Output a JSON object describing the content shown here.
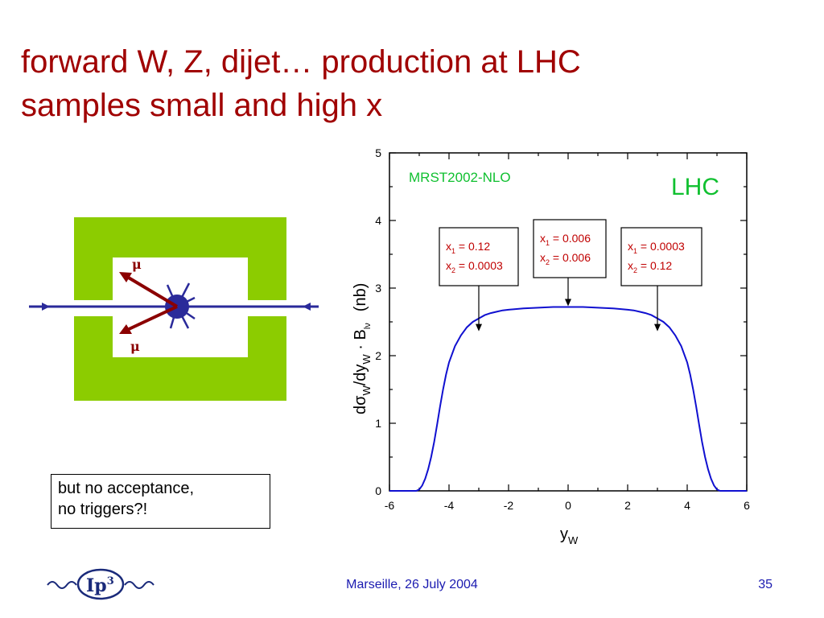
{
  "slide": {
    "title_line1": "forward W, Z, dijet… production at LHC",
    "title_line2": "samples small and high x",
    "note_line1": "but no acceptance,",
    "note_line2": "no triggers?!",
    "footer": "Marseille, 26 July 2004",
    "page_number": "35",
    "logo_letters": "Ip",
    "logo_superscript": "3"
  },
  "detector": {
    "muon_label_top": "μ",
    "muon_label_bottom": "μ",
    "colors": {
      "detector": "#8ccc00",
      "beam": "#2a2a9a",
      "muon": "#8b0000"
    }
  },
  "chart_data": {
    "type": "line",
    "title": "LHC",
    "subtitle": "MRST2002-NLO",
    "xlabel_main": "y",
    "xlabel_sub": "W",
    "ylabel_main": "dσ",
    "ylabel_sub1": "W",
    "ylabel_mid": "/dy",
    "ylabel_sub2": "W",
    "ylabel_dot": " · B",
    "ylabel_sub3": "lν",
    "ylabel_unit": "(nb)",
    "xlim": [
      -6,
      6
    ],
    "ylim": [
      0,
      5
    ],
    "xticks": [
      -6,
      -4,
      -2,
      0,
      2,
      4,
      6
    ],
    "yticks": [
      0,
      1,
      2,
      3,
      4,
      5
    ],
    "color": "#1010d0",
    "series": [
      {
        "x": [
          -5.1,
          -5.0,
          -4.9,
          -4.8,
          -4.7,
          -4.6,
          -4.5,
          -4.4,
          -4.3,
          -4.2,
          -4.1,
          -4.0,
          -3.8,
          -3.6,
          -3.4,
          -3.2,
          -3.0,
          -2.8,
          -2.6,
          -2.4,
          -2.2,
          -2.0,
          -1.5,
          -1.0,
          -0.5,
          0.0,
          0.5,
          1.0,
          1.5,
          2.0,
          2.2,
          2.4,
          2.6,
          2.8,
          3.0,
          3.2,
          3.4,
          3.6,
          3.8,
          4.0,
          4.1,
          4.2,
          4.3,
          4.4,
          4.5,
          4.6,
          4.7,
          4.8,
          4.9,
          5.0,
          5.1
        ],
        "y": [
          0.0,
          0.02,
          0.08,
          0.18,
          0.32,
          0.5,
          0.72,
          0.98,
          1.25,
          1.5,
          1.72,
          1.9,
          2.14,
          2.3,
          2.42,
          2.5,
          2.55,
          2.6,
          2.63,
          2.65,
          2.67,
          2.68,
          2.7,
          2.71,
          2.72,
          2.72,
          2.72,
          2.71,
          2.7,
          2.68,
          2.67,
          2.65,
          2.63,
          2.6,
          2.55,
          2.5,
          2.42,
          2.3,
          2.14,
          1.9,
          1.72,
          1.5,
          1.25,
          0.98,
          0.72,
          0.5,
          0.32,
          0.18,
          0.08,
          0.02,
          0.0
        ]
      }
    ],
    "annotations": [
      {
        "x1_label": "x",
        "x1_sub": "1",
        "x1_value": " = 0.12",
        "x2_label": "x",
        "x2_sub": "2",
        "x2_value": " = 0.0003",
        "arrow_x": -3.0,
        "arrow_y": 2.35
      },
      {
        "x1_label": "x",
        "x1_sub": "1",
        "x1_value": " = 0.006",
        "x2_label": "x",
        "x2_sub": "2",
        "x2_value": " = 0.006",
        "arrow_x": 0.0,
        "arrow_y": 2.72
      },
      {
        "x1_label": "x",
        "x1_sub": "1",
        "x1_value": " = 0.0003",
        "x2_label": "x",
        "x2_sub": "2",
        "x2_value": " = 0.12",
        "arrow_x": 3.0,
        "arrow_y": 2.35
      }
    ],
    "colors": {
      "curve": "#1010d0",
      "subtitle": "#10c030",
      "title": "#10c030",
      "annotation_text": "#c00000"
    }
  }
}
